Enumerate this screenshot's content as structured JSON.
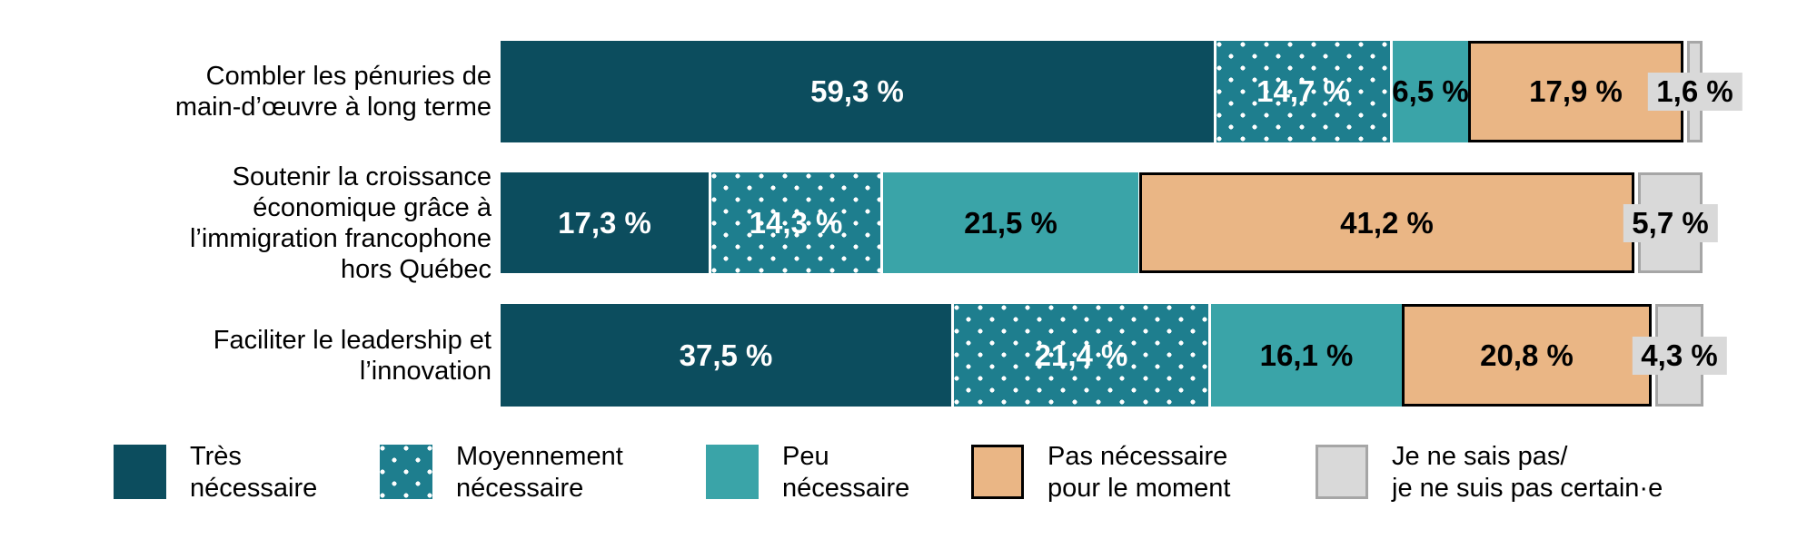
{
  "chart_data": {
    "type": "bar",
    "stacked": true,
    "orientation": "horizontal",
    "unit": "%",
    "xlim": [
      0,
      100
    ],
    "grid": false,
    "legend_position": "bottom",
    "categories": [
      {
        "label": "Combler les pénuries de main-d’œuvre à long terme",
        "lines": [
          "Combler les pénuries de",
          "main-d’œuvre à long terme"
        ]
      },
      {
        "label": "Soutenir la croissance économique grâce à l’immigration francophone hors Québec",
        "lines": [
          "Soutenir la croissance",
          "économique grâce à",
          "l’immigration francophone",
          "hors Québec"
        ]
      },
      {
        "label": "Faciliter le leadership et l’innovation",
        "lines": [
          "Faciliter le leadership et",
          "l’innovation"
        ]
      }
    ],
    "series": [
      {
        "name": "Très nécessaire",
        "legend_lines": [
          "Très",
          "nécessaire"
        ],
        "pattern": "solid",
        "color": "#0C4D5E",
        "text_color": "#FFFFFF",
        "values": [
          59.3,
          17.3,
          37.5
        ],
        "value_labels": [
          "59,3 %",
          "17,3 %",
          "37,5 %"
        ]
      },
      {
        "name": "Moyennement nécessaire",
        "legend_lines": [
          "Moyennement",
          "nécessaire"
        ],
        "pattern": "dots",
        "color": "#1E7E8E",
        "dot_color": "#FFFFFF",
        "text_color": "#FFFFFF",
        "values": [
          14.7,
          14.3,
          21.4
        ],
        "value_labels": [
          "14,7 %",
          "14,3 %",
          "21,4 %"
        ]
      },
      {
        "name": "Peu nécessaire",
        "legend_lines": [
          "Peu",
          "nécessaire"
        ],
        "pattern": "solid",
        "color": "#3AA4A8",
        "text_color": "#000000",
        "values": [
          6.5,
          21.5,
          16.1
        ],
        "value_labels": [
          "6,5 %",
          "21,5 %",
          "16,1 %"
        ]
      },
      {
        "name": "Pas nécessaire pour le moment",
        "legend_lines": [
          "Pas nécessaire",
          "pour le moment"
        ],
        "pattern": "solid",
        "color": "#EAB685",
        "border_color": "#000000",
        "text_color": "#000000",
        "values": [
          17.9,
          41.2,
          20.8
        ],
        "value_labels": [
          "17,9 %",
          "41,2 %",
          "20,8 %"
        ]
      },
      {
        "name": "Je ne sais pas/ je ne suis pas certain·e",
        "legend_lines": [
          "Je ne sais pas/",
          "je ne suis pas certain·e"
        ],
        "pattern": "solid",
        "color": "#D9D9D9",
        "border_color": "#A6A6A6",
        "text_color": "#000000",
        "label_outside": true,
        "label_outside_bg": "#D9D9D9",
        "values": [
          1.6,
          5.7,
          4.3
        ],
        "value_labels": [
          "1,6 %",
          "5,7 %",
          "4,3 %"
        ]
      }
    ]
  }
}
